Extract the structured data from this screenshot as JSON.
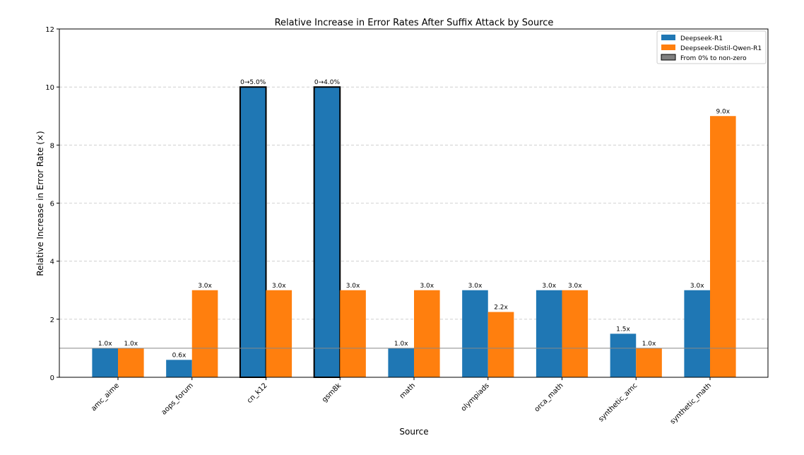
{
  "chart_data": {
    "type": "bar",
    "title": "Relative Increase in Error Rates After Suffix Attack by Source",
    "xlabel": "Source",
    "ylabel": "Relative Increase in Error Rate (×)",
    "ylim": [
      0,
      12
    ],
    "yticks": [
      0,
      2,
      4,
      6,
      8,
      10,
      12
    ],
    "grid": "horizontal dashed",
    "reference_line": 1,
    "legend_placement": "top-right",
    "categories": [
      "amc_aime",
      "aops_forum",
      "cn_k12",
      "gsm8k",
      "math",
      "olympiads",
      "orca_math",
      "synthetic_amc",
      "synthetic_math"
    ],
    "series": [
      {
        "name": "Deepseek-R1",
        "color": "#1f77b4",
        "values": [
          1.0,
          0.6,
          10,
          10,
          1.0,
          3.0,
          3.0,
          1.5,
          3.0
        ],
        "labels": [
          "1.0x",
          "0.6x",
          "0→5.0%",
          "0→4.0%",
          "1.0x",
          "3.0x",
          "3.0x",
          "1.5x",
          "3.0x"
        ],
        "from_zero": [
          false,
          false,
          true,
          true,
          false,
          false,
          false,
          false,
          false
        ]
      },
      {
        "name": "Deepseek-Distil-Qwen-R1",
        "color": "#ff7f0e",
        "values": [
          1.0,
          3.0,
          3.0,
          3.0,
          3.0,
          2.25,
          3.0,
          1.0,
          9.0
        ],
        "labels": [
          "1.0x",
          "3.0x",
          "3.0x",
          "3.0x",
          "3.0x",
          "2.2x",
          "3.0x",
          "1.0x",
          "9.0x"
        ],
        "from_zero": [
          false,
          false,
          false,
          false,
          false,
          false,
          false,
          false,
          false
        ]
      }
    ],
    "legend": [
      {
        "label": "Deepseek-R1",
        "color": "#1f77b4"
      },
      {
        "label": "Deepseek-Distil-Qwen-R1",
        "color": "#ff7f0e"
      },
      {
        "label": "From 0% to non-zero",
        "color": "#808080"
      }
    ]
  }
}
